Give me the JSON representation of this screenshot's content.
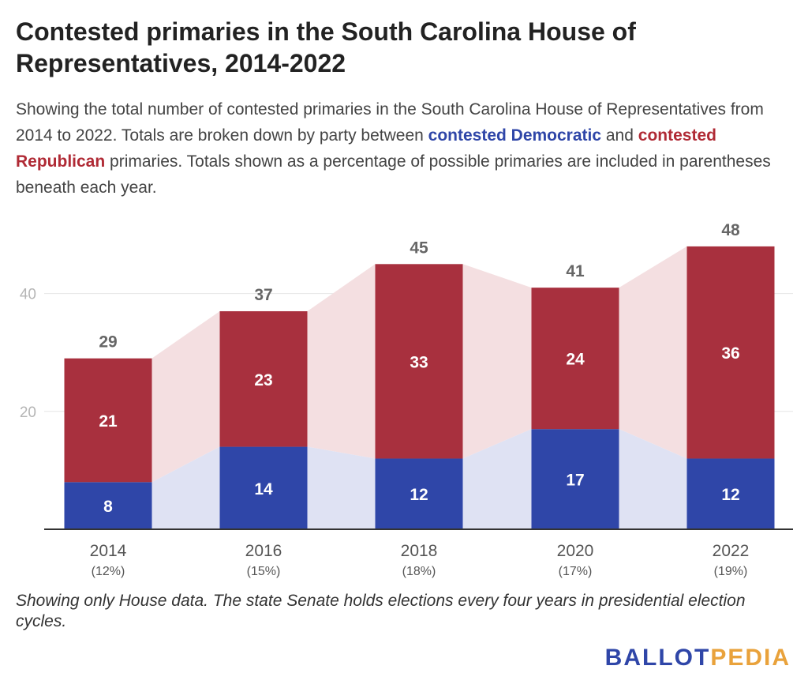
{
  "header": {
    "title": "Contested primaries in the South Carolina House of Representatives, 2014-2022",
    "subtitle_part1": "Showing the total number of contested primaries in the South Carolina House of Representatives from 2014 to 2022. Totals are broken down by party between ",
    "subtitle_dem": "contested Democratic",
    "subtitle_part2": " and ",
    "subtitle_rep": "contested Republican",
    "subtitle_part3": " primaries. Totals shown as a percentage of possible primaries are included in parentheses beneath each year."
  },
  "chart_data": {
    "type": "bar",
    "stacked": true,
    "categories": [
      "2014",
      "2016",
      "2018",
      "2020",
      "2022"
    ],
    "category_sublabels": [
      "(12%)",
      "(15%)",
      "(18%)",
      "(17%)",
      "(19%)"
    ],
    "series": [
      {
        "values": [
          8,
          14,
          12,
          17,
          12
        ],
        "color": "#2f46a8",
        "area_color": "#dfe2f3"
      },
      {
        "values": [
          21,
          23,
          33,
          24,
          36
        ],
        "color": "#a8303e",
        "area_color": "#f4dfe1"
      }
    ],
    "totals": [
      29,
      37,
      45,
      41,
      48
    ],
    "y_ticks": [
      20,
      40
    ],
    "ylim": [
      0,
      50
    ],
    "grid": true
  },
  "footer": {
    "note": "Showing only House data. The state Senate holds elections every four years in presidential election cycles.",
    "logo_part1": "BALLOT",
    "logo_part2": "PEDIA"
  }
}
